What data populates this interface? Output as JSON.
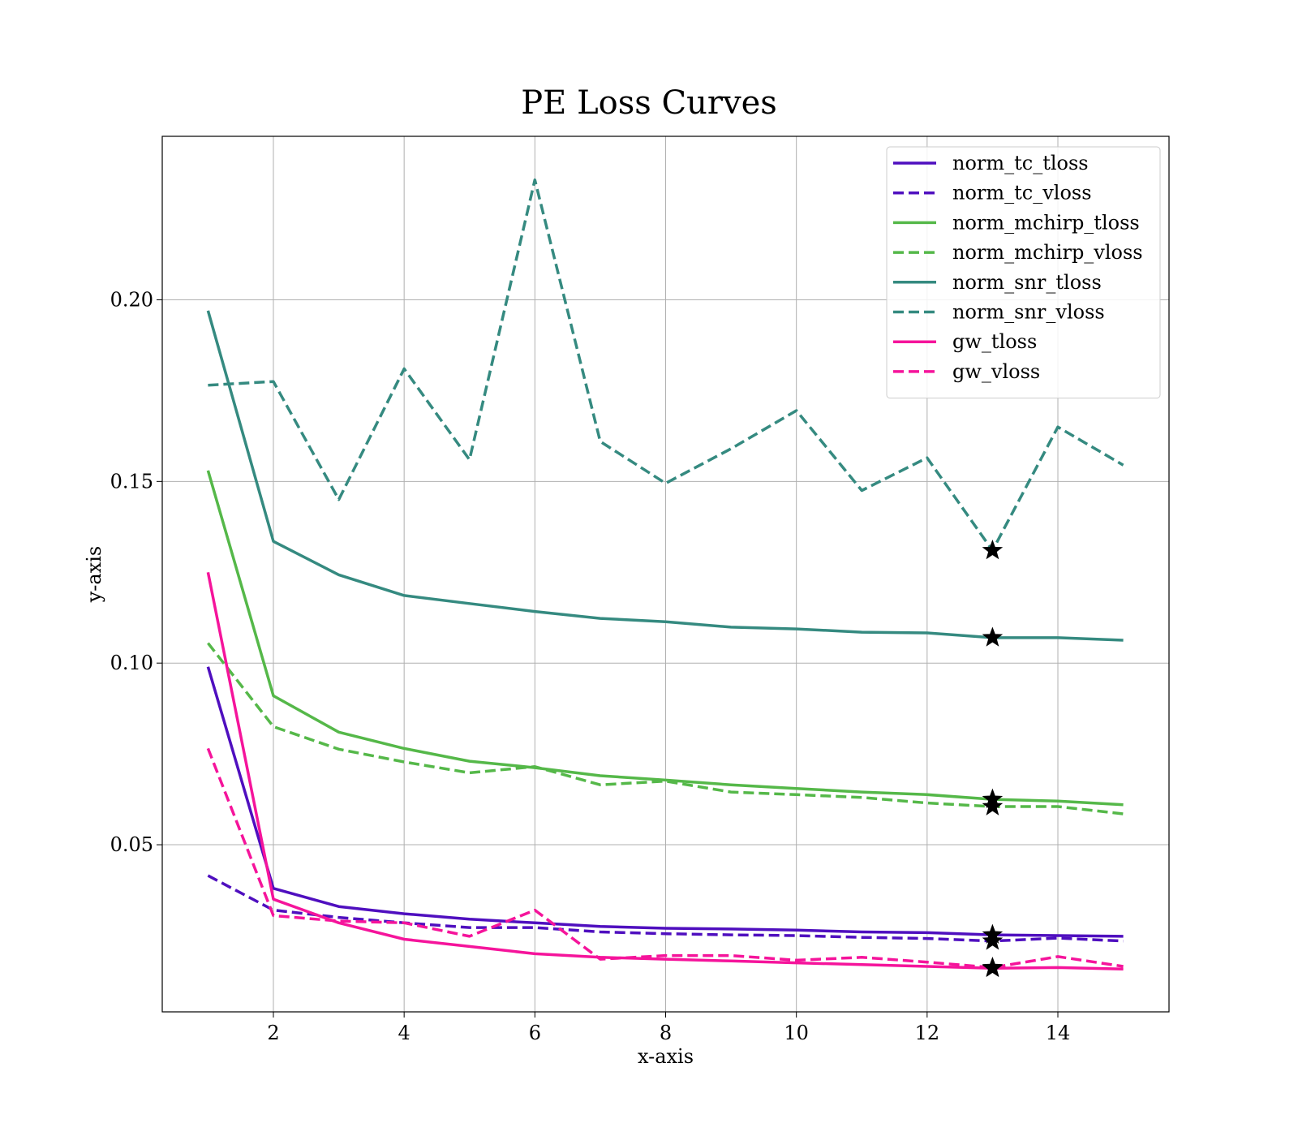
{
  "chart_data": {
    "type": "line",
    "title": "PE Loss Curves",
    "xlabel": "x-axis",
    "ylabel": "y-axis",
    "xlim": [
      0.3,
      15.7
    ],
    "ylim": [
      0.004,
      0.245
    ],
    "xticks": [
      2,
      4,
      6,
      8,
      10,
      12,
      14
    ],
    "yticks": [
      0.05,
      0.1,
      0.15,
      0.2
    ],
    "ytick_labels": [
      "0.05",
      "0.10",
      "0.15",
      "0.20"
    ],
    "grid": true,
    "legend_position": "top-right",
    "x": [
      1,
      2,
      3,
      4,
      5,
      6,
      7,
      8,
      9,
      10,
      11,
      12,
      13,
      14,
      15
    ],
    "series": [
      {
        "name": "norm_tc_tloss",
        "color": "#4f0fbf",
        "dash": "solid",
        "values": [
          0.099,
          0.038,
          0.033,
          0.031,
          0.0295,
          0.0285,
          0.0275,
          0.027,
          0.0268,
          0.0265,
          0.026,
          0.0258,
          0.0252,
          0.025,
          0.0248
        ]
      },
      {
        "name": "norm_tc_vloss",
        "color": "#4f0fbf",
        "dash": "dashed",
        "values": [
          0.0415,
          0.032,
          0.03,
          0.0285,
          0.0272,
          0.0272,
          0.026,
          0.0255,
          0.0252,
          0.025,
          0.0245,
          0.0242,
          0.0235,
          0.0243,
          0.0235
        ]
      },
      {
        "name": "norm_mchirp_tloss",
        "color": "#55b849",
        "dash": "solid",
        "values": [
          0.153,
          0.091,
          0.081,
          0.0765,
          0.073,
          0.0712,
          0.069,
          0.0678,
          0.0665,
          0.0655,
          0.0645,
          0.0638,
          0.0625,
          0.062,
          0.061
        ]
      },
      {
        "name": "norm_mchirp_vloss",
        "color": "#55b849",
        "dash": "dashed",
        "values": [
          0.1055,
          0.0825,
          0.0763,
          0.0728,
          0.0698,
          0.0715,
          0.0665,
          0.0675,
          0.0645,
          0.0638,
          0.063,
          0.0615,
          0.0605,
          0.0605,
          0.0585
        ]
      },
      {
        "name": "norm_snr_tloss",
        "color": "#358a80",
        "dash": "solid",
        "values": [
          0.197,
          0.1335,
          0.1243,
          0.1186,
          0.1164,
          0.1142,
          0.1123,
          0.1114,
          0.1099,
          0.1094,
          0.1085,
          0.1083,
          0.107,
          0.107,
          0.1063
        ]
      },
      {
        "name": "norm_snr_vloss",
        "color": "#358a80",
        "dash": "dashed",
        "values": [
          0.1765,
          0.1775,
          0.145,
          0.181,
          0.156,
          0.233,
          0.161,
          0.1495,
          0.159,
          0.1695,
          0.1475,
          0.1565,
          0.131,
          0.165,
          0.1545
        ]
      },
      {
        "name": "gw_tloss",
        "color": "#f5149b",
        "dash": "solid",
        "values": [
          0.125,
          0.035,
          0.0285,
          0.024,
          0.022,
          0.02,
          0.019,
          0.0185,
          0.018,
          0.0175,
          0.017,
          0.0165,
          0.016,
          0.0162,
          0.0158
        ]
      },
      {
        "name": "gw_vloss",
        "color": "#f5149b",
        "dash": "dashed",
        "values": [
          0.0765,
          0.0305,
          0.029,
          0.0285,
          0.0248,
          0.032,
          0.0185,
          0.0195,
          0.0195,
          0.0182,
          0.019,
          0.0177,
          0.0162,
          0.0192,
          0.0165
        ]
      }
    ],
    "markers": [
      {
        "series": "norm_snr_vloss",
        "x": 13,
        "y": 0.131,
        "symbol": "star",
        "color": "#000000"
      },
      {
        "series": "norm_snr_tloss",
        "x": 13,
        "y": 0.107,
        "symbol": "star",
        "color": "#000000"
      },
      {
        "series": "norm_mchirp_tloss",
        "x": 13,
        "y": 0.0625,
        "symbol": "star",
        "color": "#000000"
      },
      {
        "series": "norm_mchirp_vloss",
        "x": 13,
        "y": 0.0605,
        "symbol": "star",
        "color": "#000000"
      },
      {
        "series": "norm_tc_tloss",
        "x": 13,
        "y": 0.0252,
        "symbol": "star",
        "color": "#000000"
      },
      {
        "series": "norm_tc_vloss",
        "x": 13,
        "y": 0.0235,
        "symbol": "star",
        "color": "#000000"
      },
      {
        "series": "gw_vloss",
        "x": 13,
        "y": 0.0162,
        "symbol": "star",
        "color": "#000000"
      },
      {
        "series": "gw_tloss",
        "x": 13,
        "y": 0.016,
        "symbol": "star",
        "color": "#000000"
      }
    ]
  }
}
